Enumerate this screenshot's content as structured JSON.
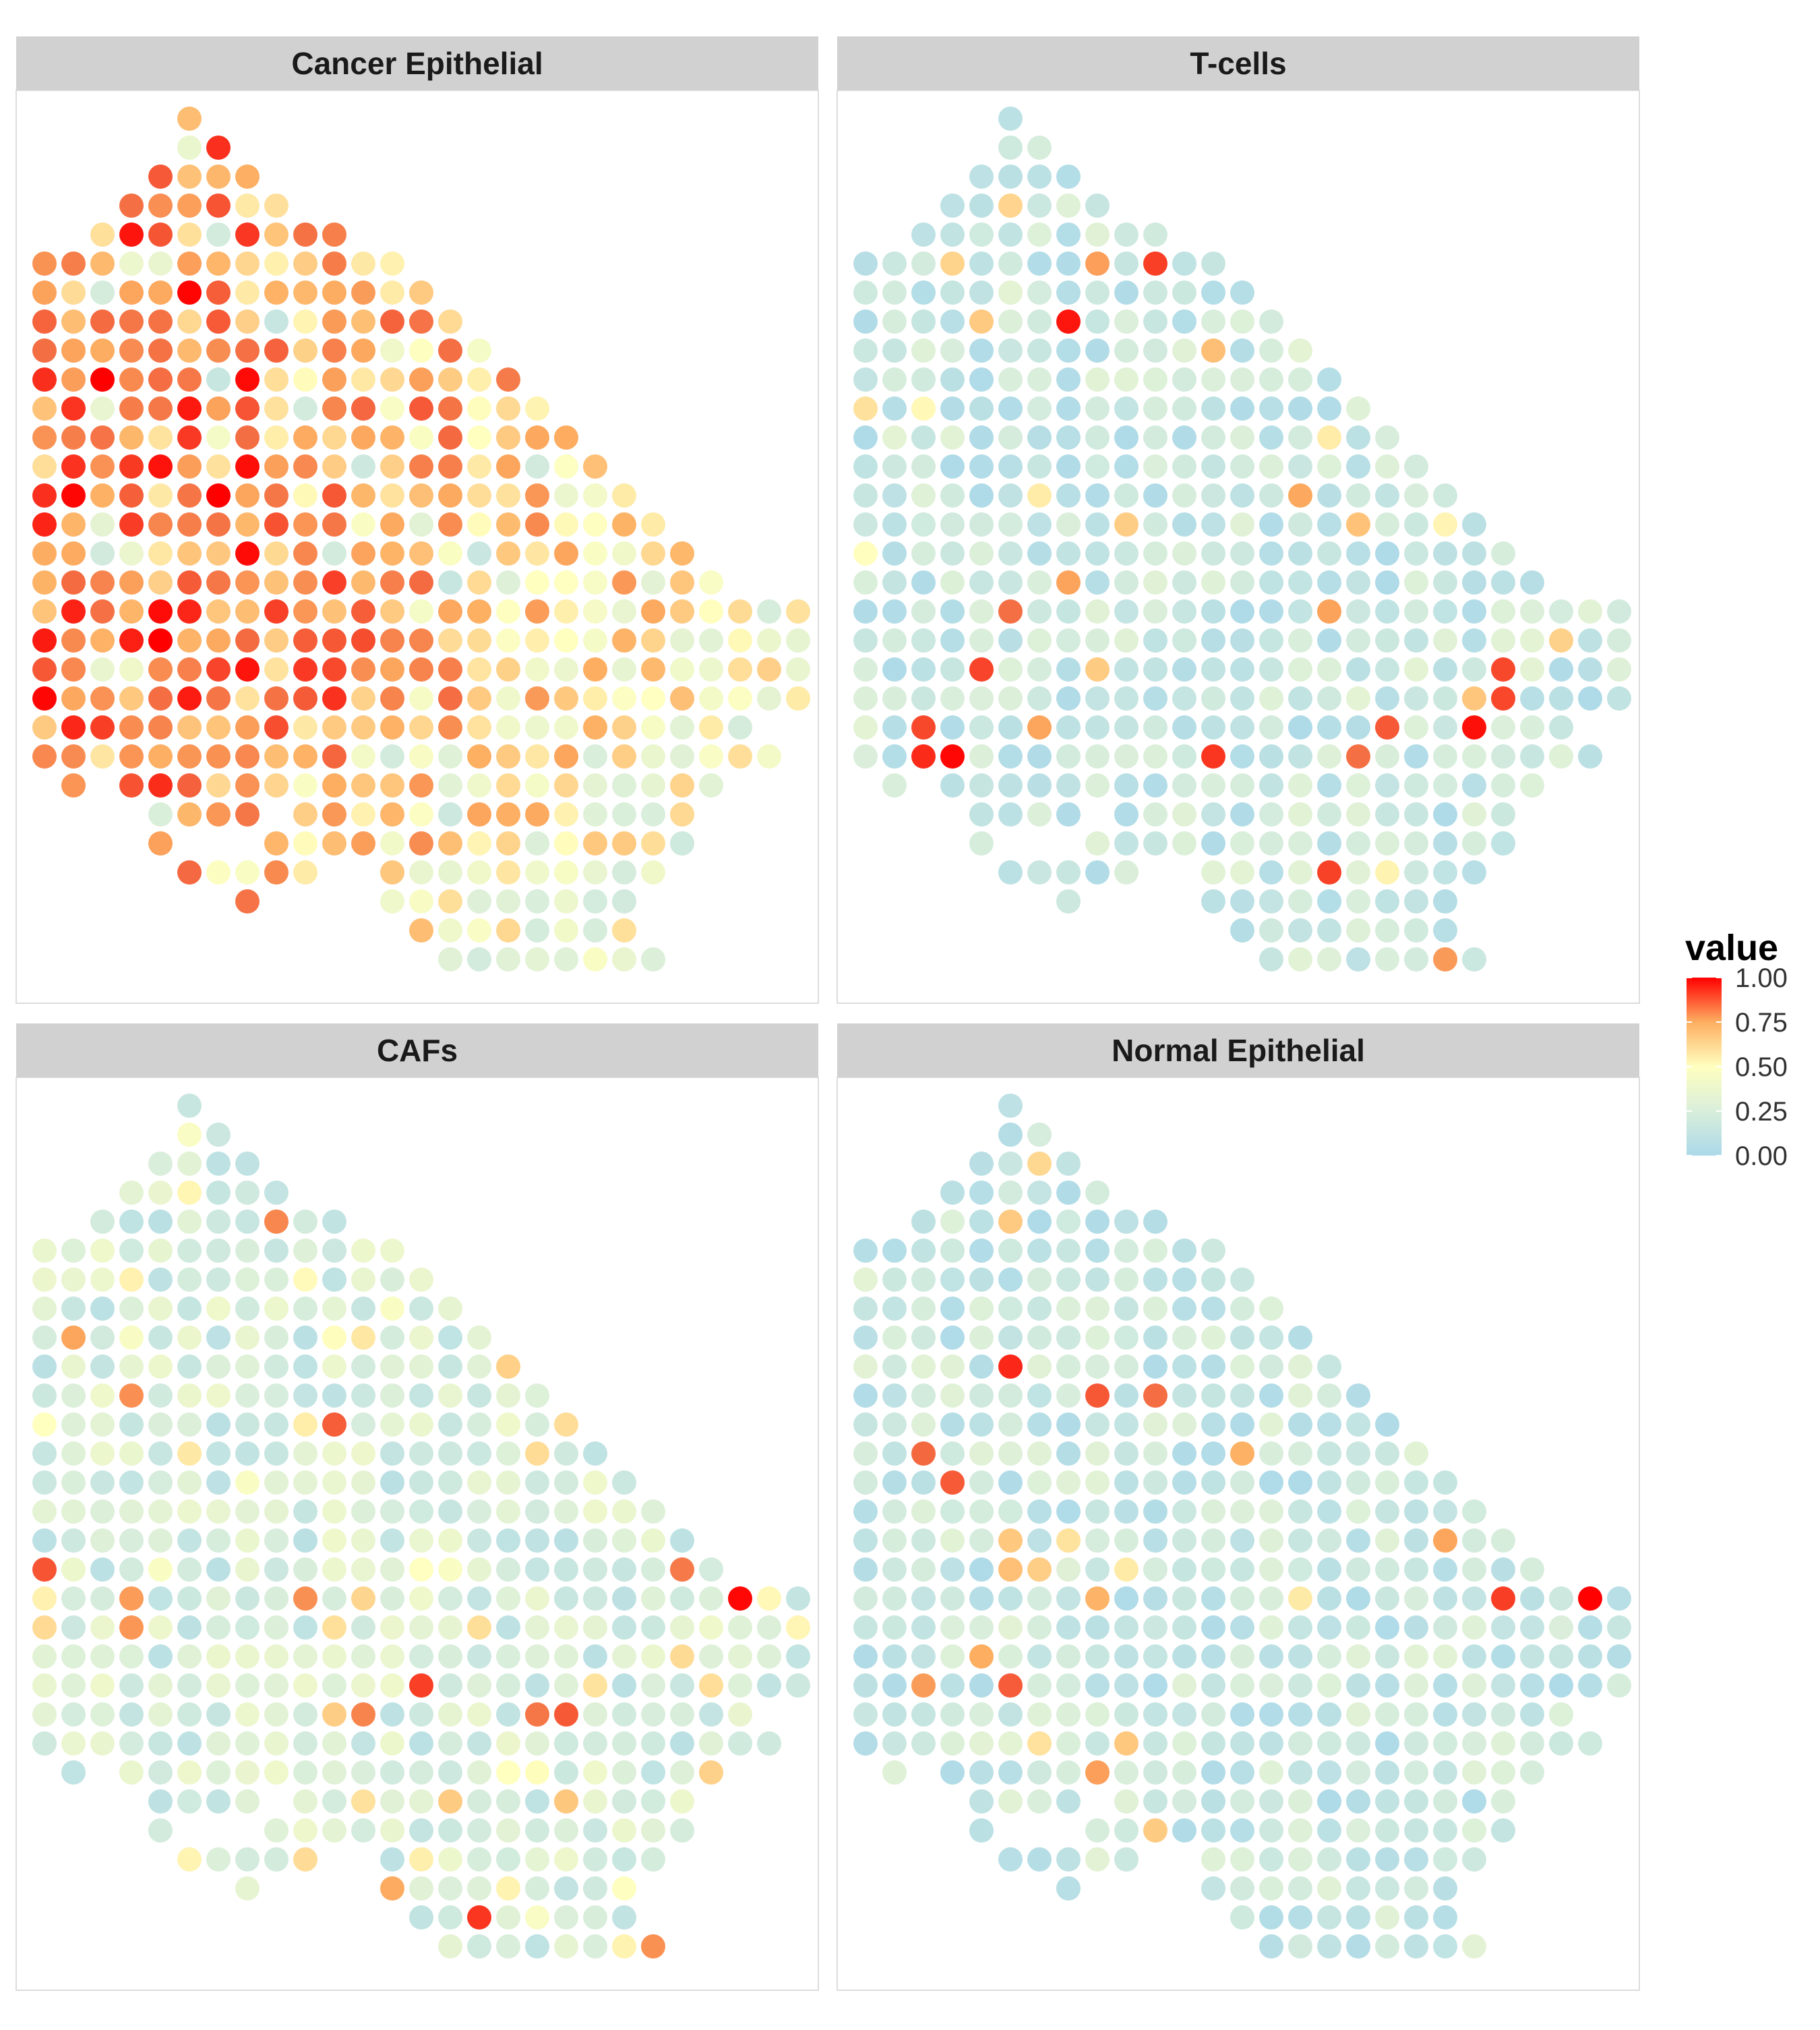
{
  "chart_data": {
    "type": "scatter",
    "facets": [
      {
        "name": "Cancer Epithelial",
        "profile": "tumor",
        "seed": 11
      },
      {
        "name": "T-cells",
        "profile": "low",
        "seed": 23
      },
      {
        "name": "CAFs",
        "profile": "low-mid",
        "seed": 37
      },
      {
        "name": "Normal Epithelial",
        "profile": "low",
        "seed": 53
      }
    ],
    "legend": {
      "title": "value",
      "ticks": [
        "1.00",
        "0.75",
        "0.50",
        "0.25",
        "0.00"
      ],
      "position": "right"
    },
    "color_scale": {
      "low": "#abd9e9",
      "mid_low": "#d9eedb",
      "mid": "#ffffbf",
      "mid_high": "#fdae61",
      "high_mid": "#f46d43",
      "high": "#ff0000"
    },
    "grid": false,
    "spot_rows": [
      {
        "row": 0,
        "cols": [
          [
            5,
            5
          ]
        ]
      },
      {
        "row": 1,
        "cols": [
          [
            5,
            6
          ]
        ]
      },
      {
        "row": 2,
        "cols": [
          [
            4,
            7
          ]
        ]
      },
      {
        "row": 3,
        "cols": [
          [
            3,
            8
          ]
        ]
      },
      {
        "row": 4,
        "cols": [
          [
            2,
            10
          ]
        ]
      },
      {
        "row": 5,
        "cols": [
          [
            0,
            12
          ]
        ]
      },
      {
        "row": 6,
        "cols": [
          [
            0,
            13
          ]
        ]
      },
      {
        "row": 7,
        "cols": [
          [
            0,
            14
          ]
        ]
      },
      {
        "row": 8,
        "cols": [
          [
            0,
            15
          ]
        ]
      },
      {
        "row": 9,
        "cols": [
          [
            0,
            16
          ]
        ]
      },
      {
        "row": 10,
        "cols": [
          [
            0,
            17
          ]
        ]
      },
      {
        "row": 11,
        "cols": [
          [
            0,
            18
          ]
        ]
      },
      {
        "row": 12,
        "cols": [
          [
            0,
            19
          ]
        ]
      },
      {
        "row": 13,
        "cols": [
          [
            0,
            20
          ]
        ]
      },
      {
        "row": 14,
        "cols": [
          [
            0,
            21
          ]
        ]
      },
      {
        "row": 15,
        "cols": [
          [
            0,
            22
          ]
        ]
      },
      {
        "row": 16,
        "cols": [
          [
            0,
            23
          ]
        ]
      },
      {
        "row": 17,
        "cols": [
          [
            0,
            26
          ]
        ]
      },
      {
        "row": 18,
        "cols": [
          [
            0,
            26
          ]
        ]
      },
      {
        "row": 19,
        "cols": [
          [
            0,
            26
          ]
        ]
      },
      {
        "row": 20,
        "cols": [
          [
            0,
            26
          ]
        ]
      },
      {
        "row": 21,
        "cols": [
          [
            0,
            24
          ]
        ]
      },
      {
        "row": 22,
        "cols": [
          [
            0,
            25
          ]
        ]
      },
      {
        "row": 23,
        "cols": [
          [
            1,
            1
          ],
          [
            3,
            23
          ]
        ]
      },
      {
        "row": 24,
        "cols": [
          [
            4,
            7
          ],
          [
            9,
            22
          ]
        ]
      },
      {
        "row": 25,
        "cols": [
          [
            4,
            4
          ],
          [
            8,
            22
          ]
        ]
      },
      {
        "row": 26,
        "cols": [
          [
            5,
            9
          ],
          [
            12,
            21
          ]
        ]
      },
      {
        "row": 27,
        "cols": [
          [
            7,
            7
          ],
          [
            12,
            20
          ]
        ]
      },
      {
        "row": 28,
        "cols": [
          [
            13,
            20
          ]
        ]
      },
      {
        "row": 29,
        "cols": [
          [
            14,
            21
          ]
        ]
      }
    ]
  }
}
